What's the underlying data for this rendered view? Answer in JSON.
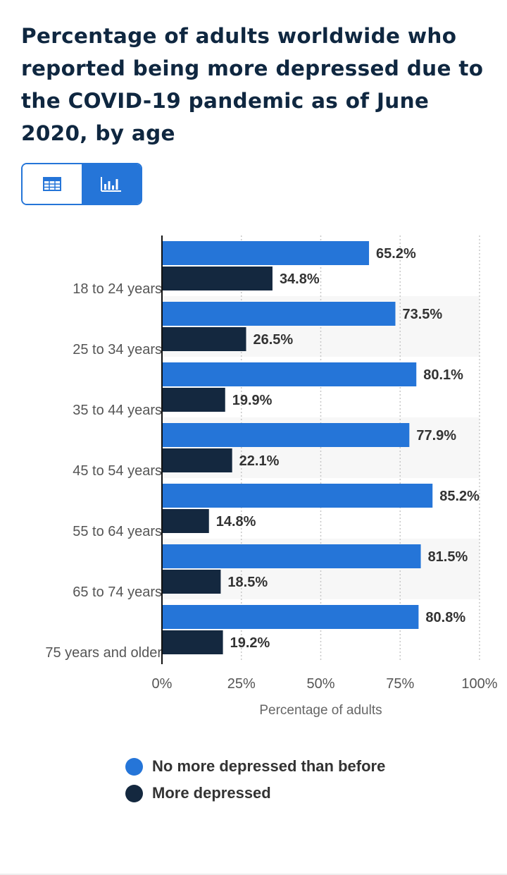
{
  "title": "Percentage of adults worldwide who reported being more depressed due to the COVID-19 pandemic as of June 2020, by age",
  "view_toggle": {
    "table_icon": "table-icon",
    "chart_icon": "bar-chart-icon",
    "active": "chart"
  },
  "colors": {
    "series1": "#2575d8",
    "series2": "#14283f",
    "accent": "#2575d8",
    "title": "#0f2740"
  },
  "chart_data": {
    "type": "bar",
    "orientation": "horizontal",
    "title": "Percentage of adults worldwide who reported being more depressed due to the COVID-19 pandemic as of June 2020, by age",
    "categories": [
      "18 to 24 years",
      "25 to 34 years",
      "35 to 44 years",
      "45 to 54 years",
      "55 to 64 years",
      "65 to 74 years",
      "75 years and older"
    ],
    "series": [
      {
        "name": "No more depressed than before",
        "values": [
          65.2,
          73.5,
          80.1,
          77.9,
          85.2,
          81.5,
          80.8
        ],
        "labels": [
          "65.2%",
          "73.5%",
          "80.1%",
          "77.9%",
          "85.2%",
          "81.5%",
          "80.8%"
        ]
      },
      {
        "name": "More depressed",
        "values": [
          34.8,
          26.5,
          19.9,
          22.1,
          14.8,
          18.5,
          19.2
        ],
        "labels": [
          "34.8%",
          "26.5%",
          "19.9%",
          "22.1%",
          "14.8%",
          "18.5%",
          "19.2%"
        ]
      }
    ],
    "xlabel": "Percentage of adults",
    "ylabel": "",
    "xlim": [
      0,
      100
    ],
    "x_ticks": [
      0,
      25,
      50,
      75,
      100
    ],
    "x_tick_labels": [
      "0%",
      "25%",
      "50%",
      "75%",
      "100%"
    ],
    "grid": true,
    "legend_position": "bottom"
  },
  "legend": {
    "items": [
      {
        "label": "No more depressed than before"
      },
      {
        "label": "More depressed"
      }
    ]
  }
}
